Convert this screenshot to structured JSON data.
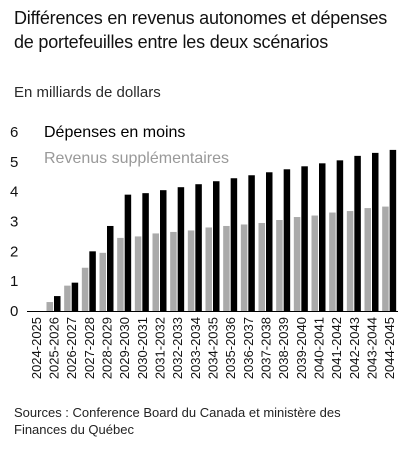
{
  "header": {
    "title": "Différences en revenus autonomes et dépenses de portefeuilles entre les deux scénarios",
    "subtitle": "En milliards de dollars"
  },
  "footer": {
    "source": "Sources : Conference Board du Canada et ministère des Finances du Québec"
  },
  "colors": {
    "series_1": "#000000",
    "series_2": "#aaaaaa"
  },
  "chart_data": {
    "type": "bar",
    "title": "Différences en revenus autonomes et dépenses de portefeuilles entre les deux scénarios",
    "subtitle": "En milliards de dollars",
    "xlabel": "",
    "ylabel": "",
    "ylim": [
      0,
      6
    ],
    "yticks": [
      0,
      1,
      2,
      3,
      4,
      5,
      6
    ],
    "grid": false,
    "legend_position": "top-left",
    "categories": [
      "2024-2025",
      "2025-2026",
      "2026-2027",
      "2027-2028",
      "2028-2029",
      "2029-2030",
      "2030-2031",
      "2031-2032",
      "2032-2033",
      "2033-2034",
      "2034-2035",
      "2035-2036",
      "2036-2037",
      "2037-2038",
      "2038-2039",
      "2039-2040",
      "2040-2041",
      "2041-2042",
      "2042-2043",
      "2043-2044",
      "2044-2045"
    ],
    "series": [
      {
        "name": "Dépenses en moins",
        "color": "#000000",
        "values": [
          0.0,
          0.5,
          0.95,
          2.0,
          2.85,
          3.9,
          3.95,
          4.05,
          4.15,
          4.25,
          4.35,
          4.45,
          4.55,
          4.65,
          4.75,
          4.85,
          4.95,
          5.05,
          5.2,
          5.3,
          5.4
        ]
      },
      {
        "name": "Revenus supplémentaires",
        "color": "#aaaaaa",
        "values": [
          0.0,
          0.3,
          0.85,
          1.45,
          1.95,
          2.45,
          2.5,
          2.6,
          2.65,
          2.7,
          2.8,
          2.85,
          2.9,
          2.95,
          3.05,
          3.15,
          3.2,
          3.3,
          3.35,
          3.45,
          3.5
        ]
      }
    ]
  }
}
